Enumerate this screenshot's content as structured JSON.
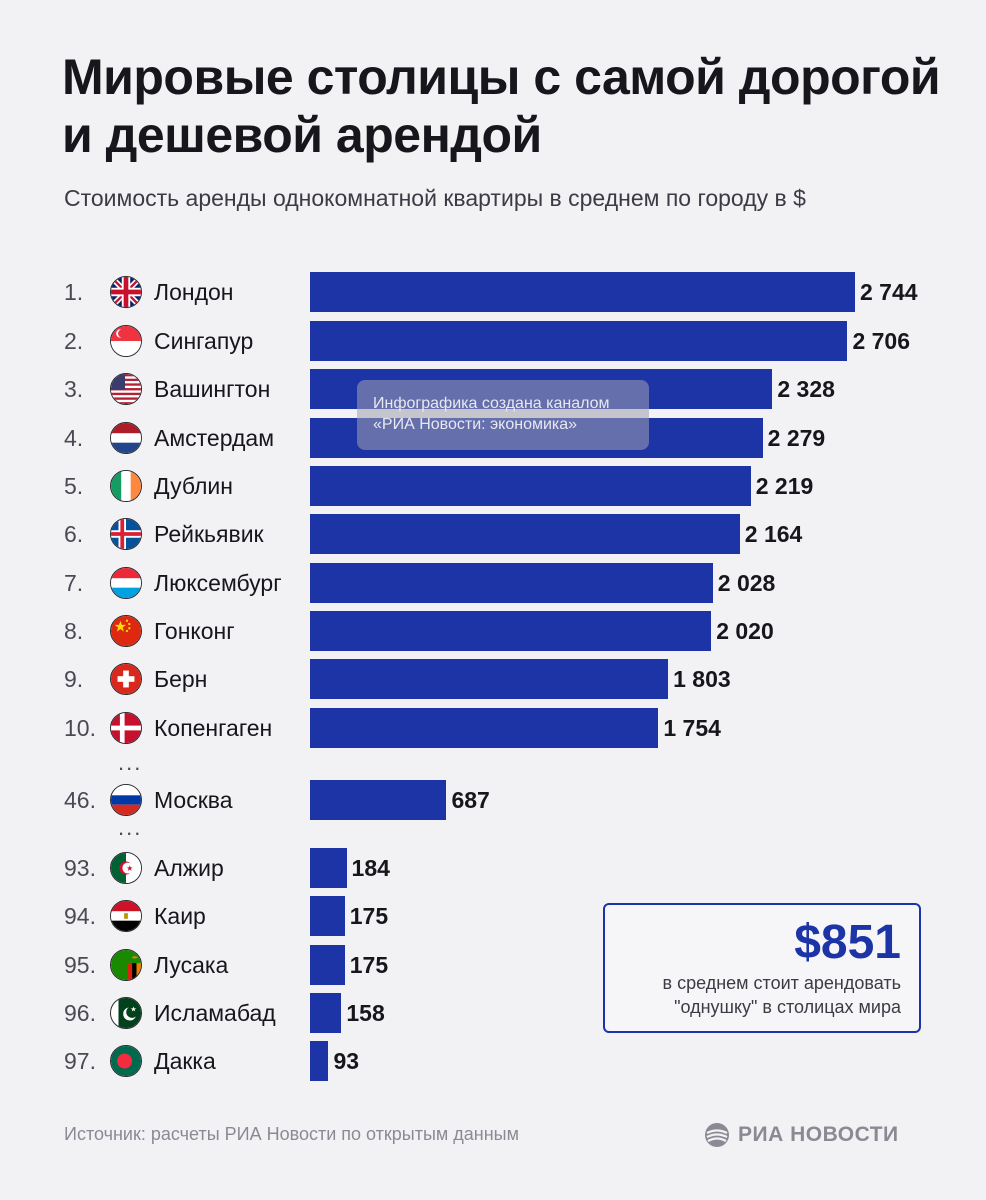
{
  "title": "Мировые столицы с самой дорогой и дешевой арендой",
  "subtitle": "Стоимость аренды однокомнатной квартиры в среднем по городу в $",
  "watermark": {
    "line1": "Инфографика создана каналом",
    "line2": "«РИА Новости: экономика»"
  },
  "ellipsis": "...",
  "average": {
    "value": "$851",
    "text": "в среднем стоит арендовать \"однушку\" в столицах мира"
  },
  "source": "Источник: расчеты РИА Новости по открытым данным",
  "logo_text": "РИА НОВОСТИ",
  "colors": {
    "bar": "#1d34a6",
    "background": "#f2f2f4",
    "accent": "#1d34a6"
  },
  "chart_data": {
    "type": "bar",
    "orientation": "horizontal",
    "title": "Мировые столицы с самой дорогой и дешевой арендой",
    "subtitle": "Стоимость аренды однокомнатной квартиры в среднем по городу в $",
    "unit": "$",
    "categories": [
      "Лондон",
      "Сингапур",
      "Вашингтон",
      "Амстердам",
      "Дублин",
      "Рейкьявик",
      "Люксембург",
      "Гонконг",
      "Берн",
      "Копенгаген",
      "Москва",
      "Алжир",
      "Каир",
      "Лусака",
      "Исламабад",
      "Дакка"
    ],
    "ranks": [
      "1.",
      "2.",
      "3.",
      "4.",
      "5.",
      "6.",
      "7.",
      "8.",
      "9.",
      "10.",
      "46.",
      "93.",
      "94.",
      "95.",
      "96.",
      "97."
    ],
    "values": [
      2744,
      2706,
      2328,
      2279,
      2219,
      2164,
      2028,
      2020,
      1803,
      1754,
      687,
      184,
      175,
      175,
      158,
      93
    ],
    "value_labels": [
      "2 744",
      "2 706",
      "2 328",
      "2 279",
      "2 219",
      "2 164",
      "2 028",
      "2 020",
      "1 803",
      "1 754",
      "687",
      "184",
      "175",
      "175",
      "158",
      "93"
    ],
    "flags": [
      "flag-uk",
      "flag-singapore",
      "flag-usa",
      "flag-netherlands",
      "flag-ireland",
      "flag-iceland",
      "flag-luxembourg",
      "flag-china",
      "flag-switzerland",
      "flag-denmark",
      "flag-russia",
      "flag-algeria",
      "flag-egypt",
      "flag-zambia",
      "flag-pakistan",
      "flag-bangladesh"
    ],
    "xlim": [
      0,
      2744
    ],
    "grid": false,
    "legend": "none"
  }
}
